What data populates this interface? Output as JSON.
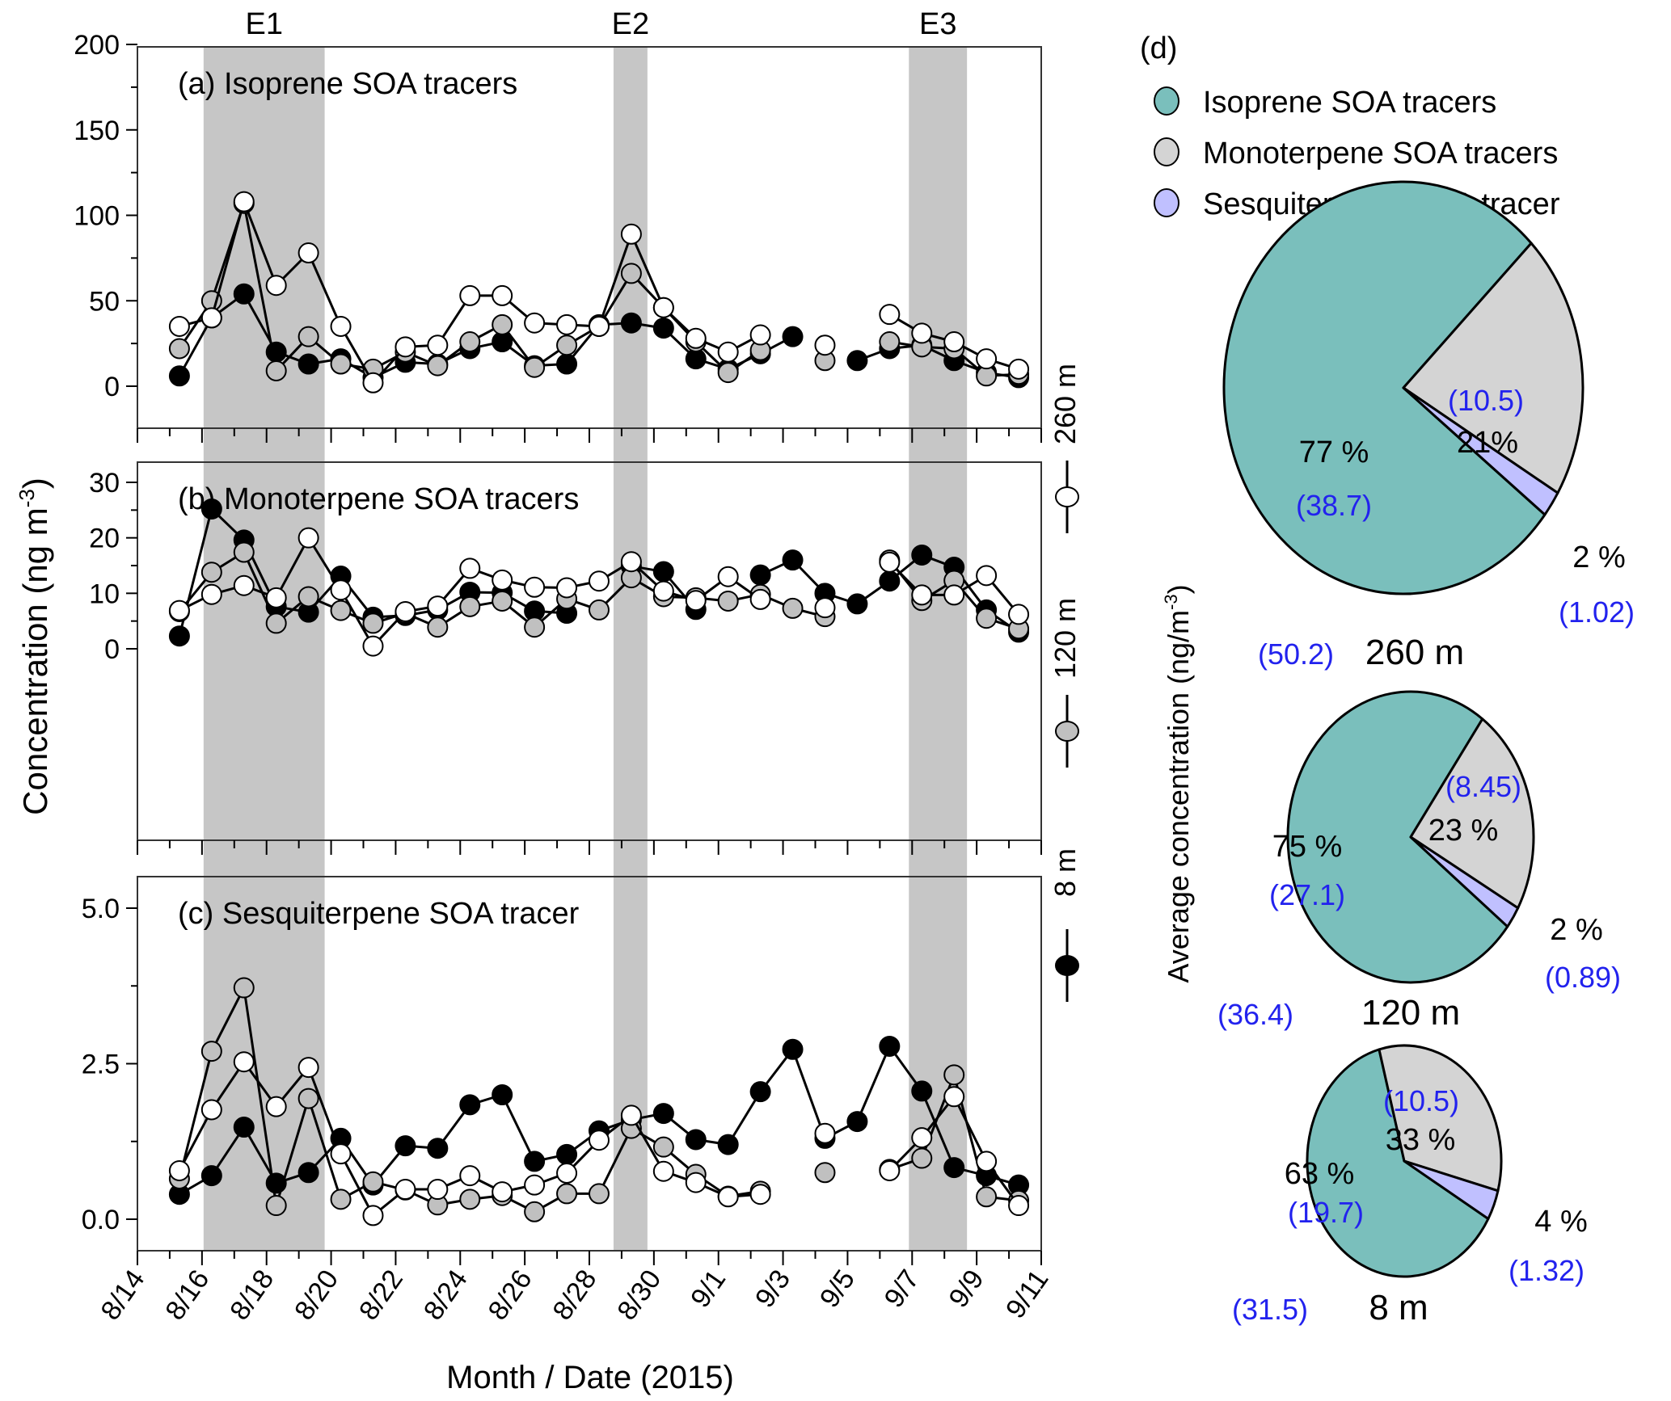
{
  "chart_data": [
    {
      "type": "line",
      "id": "a",
      "title": "(a) Isoprene SOA tracers",
      "ylim": [
        0,
        200
      ],
      "yticks": [
        0,
        50,
        100,
        150,
        200
      ],
      "ytick_labels": [
        "0",
        "50",
        "100",
        "150",
        "200"
      ],
      "x": [
        15,
        16,
        17,
        18,
        19,
        20,
        21,
        22,
        23,
        24,
        25,
        26,
        27,
        28,
        29,
        30,
        31,
        32,
        33,
        34,
        35,
        36,
        37,
        38,
        39,
        40,
        41
      ],
      "series": [
        {
          "name": "8 m",
          "values": [
            6,
            40,
            54,
            20,
            13,
            16,
            5,
            14,
            13,
            22,
            26,
            12,
            13,
            36,
            37,
            34,
            16,
            10,
            19,
            29,
            null,
            15,
            22,
            24,
            15,
            8,
            5
          ]
        },
        {
          "name": "120 m",
          "values": [
            22,
            50,
            107,
            9,
            29,
            13,
            10,
            20,
            12,
            26,
            36,
            11,
            24,
            35,
            66,
            46,
            26,
            8,
            21,
            null,
            15,
            null,
            26,
            23,
            22,
            6,
            7
          ]
        },
        {
          "name": "260 m",
          "values": [
            35,
            40,
            108,
            59,
            78,
            35,
            2,
            23,
            24,
            53,
            53,
            37,
            36,
            35,
            89,
            46,
            28,
            20,
            30,
            null,
            24,
            null,
            42,
            31,
            26,
            16,
            10
          ]
        }
      ]
    },
    {
      "type": "line",
      "id": "b",
      "title": "(b) Monoterpene SOA tracers",
      "ylim": [
        0,
        35
      ],
      "yticks": [
        0,
        10,
        20,
        30
      ],
      "ytick_labels": [
        "0",
        "10",
        "20",
        "30"
      ],
      "x": [
        15,
        16,
        17,
        18,
        19,
        20,
        21,
        22,
        23,
        24,
        25,
        26,
        27,
        28,
        29,
        30,
        31,
        32,
        33,
        34,
        35,
        36,
        37,
        38,
        39,
        40,
        41
      ],
      "series": [
        {
          "name": "8 m",
          "values": [
            2.3,
            25.2,
            19.6,
            7.6,
            6.6,
            13.1,
            5.7,
            6.0,
            7.0,
            10.2,
            10.1,
            6.8,
            6.4,
            null,
            14.9,
            13.9,
            7.1,
            null,
            13.3,
            16.0,
            10.0,
            8.1,
            12.2,
            16.9,
            14.7,
            7.0,
            3.0
          ]
        },
        {
          "name": "120 m",
          "values": [
            6.7,
            13.8,
            17.4,
            4.6,
            9.4,
            6.9,
            4.6,
            6.4,
            3.9,
            7.6,
            8.6,
            3.9,
            9.0,
            7.0,
            12.8,
            9.4,
            9.2,
            8.6,
            9.8,
            7.3,
            5.8,
            null,
            16.0,
            8.7,
            12.3,
            5.5,
            3.6
          ]
        },
        {
          "name": "260 m",
          "values": [
            6.9,
            9.8,
            11.4,
            9.2,
            20.0,
            10.6,
            0.5,
            6.7,
            7.7,
            14.5,
            12.4,
            11.1,
            11.0,
            12.2,
            15.7,
            10.4,
            8.7,
            13.0,
            8.9,
            null,
            7.4,
            null,
            15.6,
            9.7,
            9.7,
            13.2,
            6.2
          ]
        }
      ]
    },
    {
      "type": "line",
      "id": "c",
      "title": "(c) Sesquiterpene SOA tracer",
      "ylim": [
        -0.2,
        5.4
      ],
      "yticks": [
        0.0,
        2.5,
        5.0
      ],
      "ytick_labels": [
        "0.0",
        "2.5",
        "5.0"
      ],
      "x": [
        15,
        16,
        17,
        18,
        19,
        20,
        21,
        22,
        23,
        24,
        25,
        26,
        27,
        28,
        29,
        30,
        31,
        32,
        33,
        34,
        35,
        36,
        37,
        38,
        39,
        40,
        41
      ],
      "series": [
        {
          "name": "8 m",
          "values": [
            0.4,
            0.7,
            1.48,
            0.58,
            0.75,
            1.3,
            0.55,
            1.18,
            1.14,
            1.84,
            2.0,
            0.93,
            1.04,
            1.42,
            1.6,
            1.7,
            1.28,
            1.2,
            2.05,
            2.73,
            1.3,
            1.57,
            2.78,
            2.06,
            0.83,
            0.7,
            0.55
          ]
        },
        {
          "name": "120 m",
          "values": [
            0.65,
            2.7,
            3.72,
            0.22,
            1.94,
            0.32,
            0.6,
            0.47,
            0.23,
            0.32,
            0.38,
            0.12,
            0.41,
            0.41,
            1.46,
            1.16,
            0.72,
            0.37,
            0.45,
            null,
            0.75,
            null,
            0.8,
            0.98,
            2.32,
            0.36,
            0.3
          ]
        },
        {
          "name": "260 m",
          "values": [
            0.78,
            1.76,
            2.53,
            1.81,
            2.44,
            1.05,
            0.06,
            0.48,
            0.48,
            0.7,
            0.44,
            0.55,
            0.74,
            1.27,
            1.67,
            0.77,
            0.59,
            0.36,
            0.4,
            null,
            1.38,
            null,
            0.78,
            1.31,
            1.97,
            0.93,
            0.22
          ]
        }
      ]
    },
    {
      "type": "pie",
      "id": "d-260",
      "label": "260 m",
      "total_label": "(50.2)",
      "categories": [
        "Isoprene SOA tracers",
        "Monoterpene SOA tracers",
        "Sesquiterpene SOA tracer"
      ],
      "values": [
        38.7,
        10.5,
        1.02
      ],
      "percent_labels": [
        "77 %",
        "21%",
        "2 %"
      ],
      "value_labels": [
        "(38.7)",
        "(10.5)",
        "(1.02)"
      ]
    },
    {
      "type": "pie",
      "id": "d-120",
      "label": "120 m",
      "total_label": "(36.4)",
      "categories": [
        "Isoprene SOA tracers",
        "Monoterpene SOA tracers",
        "Sesquiterpene SOA tracer"
      ],
      "values": [
        27.1,
        8.45,
        0.89
      ],
      "percent_labels": [
        "75 %",
        "23 %",
        "2 %"
      ],
      "value_labels": [
        "(27.1)",
        "(8.45)",
        "(0.89)"
      ]
    },
    {
      "type": "pie",
      "id": "d-8",
      "label": "8 m",
      "total_label": "(31.5)",
      "categories": [
        "Isoprene SOA tracers",
        "Monoterpene SOA tracers",
        "Sesquiterpene SOA tracer"
      ],
      "values": [
        19.7,
        10.5,
        1.32
      ],
      "percent_labels": [
        "63 %",
        "33 %",
        "4 %"
      ],
      "value_labels": [
        "(19.7)",
        "(10.5)",
        "(1.32)"
      ]
    }
  ],
  "x_axis": {
    "label": "Month / Date (2015)",
    "range_days": [
      14,
      42
    ],
    "tick_labels": [
      "8/14",
      "8/16",
      "8/18",
      "8/20",
      "8/22",
      "8/24",
      "8/26",
      "8/28",
      "8/30",
      "9/1",
      "9/3",
      "9/5",
      "9/7",
      "9/9",
      "9/11"
    ],
    "tick_days": [
      14,
      16,
      18,
      20,
      22,
      24,
      26,
      28,
      30,
      32,
      34,
      36,
      38,
      40,
      42
    ]
  },
  "y_axis_title": "Concentration (ng m",
  "y_axis_title_sup": "-3",
  "y_axis_title_end": ")",
  "events": [
    {
      "label": "E1",
      "start": 16.05,
      "end": 19.8
    },
    {
      "label": "E2",
      "start": 28.75,
      "end": 29.8
    },
    {
      "label": "E3",
      "start": 37.9,
      "end": 39.7
    }
  ],
  "height_legend": [
    {
      "label": "260 m",
      "fill": "#ffffff"
    },
    {
      "label": "120 m",
      "fill": "#c0c0c0"
    },
    {
      "label": "8 m",
      "fill": "#000000"
    }
  ],
  "series_fills": {
    "8 m": "#000000",
    "120 m": "#c0c0c0",
    "260 m": "#ffffff"
  },
  "pie_panel": {
    "label": "(d)",
    "axis_title": "Average concentration (ng/m",
    "axis_title_sup": "-3",
    "axis_title_end": ")",
    "legend": [
      {
        "label": "Isoprene SOA tracers",
        "color": "#7abfbc"
      },
      {
        "label": "Monoterpene SOA tracers",
        "color": "#d4d4d4"
      },
      {
        "label": "Sesquiterpene SOA tracer",
        "color": "#c0c0ff"
      }
    ],
    "value_color": "#2222ee"
  },
  "colors": {
    "event_band": "#c6c6c6",
    "isoprene": "#7abfbc",
    "monoterpene": "#d4d4d4",
    "sesquiterpene": "#c0c0ff"
  }
}
